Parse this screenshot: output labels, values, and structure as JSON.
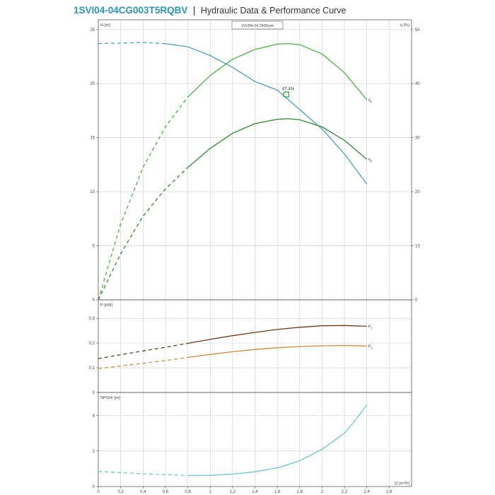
{
  "header": {
    "product_code": "1SVI04-04CG003T5RQBV",
    "separator": "|",
    "title": "Hydraulic Data & Performance Curve"
  },
  "colors": {
    "head": "#4a9cc4",
    "efficiency_p": "#47b23e",
    "efficiency_u": "#2f8a33",
    "p1": "#6b3a1c",
    "p2": "#d18a3c",
    "npsh": "#6cc4d4",
    "grid": "#cccccc",
    "frame": "#555555"
  },
  "chart_data": [
    {
      "type": "line",
      "panel": "head",
      "box_label": "1SVI04-04 2900rpm",
      "ylabel": "H [m]",
      "y2label": "η [%]",
      "xlim": [
        0,
        2.8
      ],
      "ylim": [
        0,
        25.9
      ],
      "y2lim": [
        0,
        51.8
      ],
      "yticks": [
        0,
        5,
        10,
        15,
        20,
        25
      ],
      "y2ticks": [
        0,
        10,
        20,
        30,
        40,
        50
      ],
      "grid": true,
      "annotation": {
        "text": "47.4%",
        "x": 1.68,
        "y": 19.0
      },
      "series": [
        {
          "name": "",
          "key": "head",
          "axis": "left",
          "dashed_until": 0.6,
          "x": [
            0,
            0.2,
            0.4,
            0.6,
            0.8,
            1.0,
            1.2,
            1.4,
            1.6,
            1.8,
            2.0,
            2.2,
            2.4
          ],
          "y": [
            23.7,
            23.75,
            23.8,
            23.7,
            23.4,
            22.6,
            21.5,
            20.2,
            19.4,
            17.6,
            15.8,
            13.5,
            10.7
          ]
        },
        {
          "name": "ηp",
          "key": "efficiency_p",
          "axis": "right",
          "dashed_until": 0.7,
          "x": [
            0,
            0.2,
            0.4,
            0.6,
            0.8,
            1.0,
            1.2,
            1.4,
            1.6,
            1.7,
            1.8,
            2.0,
            2.2,
            2.4
          ],
          "y": [
            0,
            14,
            24.5,
            32,
            37.5,
            41.5,
            44.5,
            46.3,
            47.3,
            47.4,
            47.2,
            45.5,
            42,
            37
          ]
        },
        {
          "name": "ηu",
          "key": "efficiency_u",
          "axis": "right",
          "dashed_until": 0.7,
          "x": [
            0,
            0.2,
            0.4,
            0.6,
            0.8,
            1.0,
            1.2,
            1.4,
            1.6,
            1.7,
            1.8,
            2.0,
            2.2,
            2.4
          ],
          "y": [
            0,
            8.5,
            15.5,
            20.5,
            24.5,
            28,
            30.8,
            32.6,
            33.4,
            33.5,
            33.3,
            32,
            29.5,
            26
          ]
        }
      ]
    },
    {
      "type": "line",
      "panel": "power",
      "ylabel": "P [kW]",
      "xlim": [
        0,
        2.8
      ],
      "ylim": [
        0,
        0.375
      ],
      "yticks": [
        0,
        0.1,
        0.2,
        0.3
      ],
      "ytick_labels": [
        "0",
        "0,1",
        "0,2",
        "0,3"
      ],
      "grid": true,
      "series": [
        {
          "name": "P1",
          "key": "p1",
          "dashed_until": 0.7,
          "x": [
            0,
            0.2,
            0.4,
            0.6,
            0.8,
            1.0,
            1.2,
            1.4,
            1.6,
            1.8,
            2.0,
            2.2,
            2.4
          ],
          "y": [
            0.137,
            0.153,
            0.168,
            0.183,
            0.199,
            0.215,
            0.23,
            0.243,
            0.255,
            0.264,
            0.27,
            0.271,
            0.268
          ]
        },
        {
          "name": "P2",
          "key": "p2",
          "dashed_until": 0.7,
          "x": [
            0,
            0.2,
            0.4,
            0.6,
            0.8,
            1.0,
            1.2,
            1.4,
            1.6,
            1.8,
            2.0,
            2.2,
            2.4
          ],
          "y": [
            0.097,
            0.107,
            0.118,
            0.129,
            0.142,
            0.154,
            0.165,
            0.174,
            0.181,
            0.186,
            0.189,
            0.19,
            0.188
          ]
        }
      ]
    },
    {
      "type": "line",
      "panel": "npsh",
      "ylabel": "NPSHr [m]",
      "xlabel": "Q [m³/h]",
      "xlim": [
        0,
        2.8
      ],
      "ylim": [
        0,
        5.3
      ],
      "yticks": [
        0,
        2,
        4
      ],
      "xticks": [
        0,
        0.2,
        0.4,
        0.6,
        0.8,
        1,
        1.2,
        1.4,
        1.6,
        1.8,
        2,
        2.2,
        2.4,
        2.6
      ],
      "grid": true,
      "series": [
        {
          "name": "",
          "key": "npsh",
          "dashed_until": 0.7,
          "x": [
            0,
            0.2,
            0.4,
            0.6,
            0.8,
            1.0,
            1.2,
            1.4,
            1.6,
            1.8,
            2.0,
            2.2,
            2.3,
            2.4
          ],
          "y": [
            0.85,
            0.78,
            0.72,
            0.66,
            0.62,
            0.63,
            0.7,
            0.83,
            1.05,
            1.45,
            2.1,
            3.0,
            3.75,
            4.6
          ]
        }
      ]
    }
  ]
}
